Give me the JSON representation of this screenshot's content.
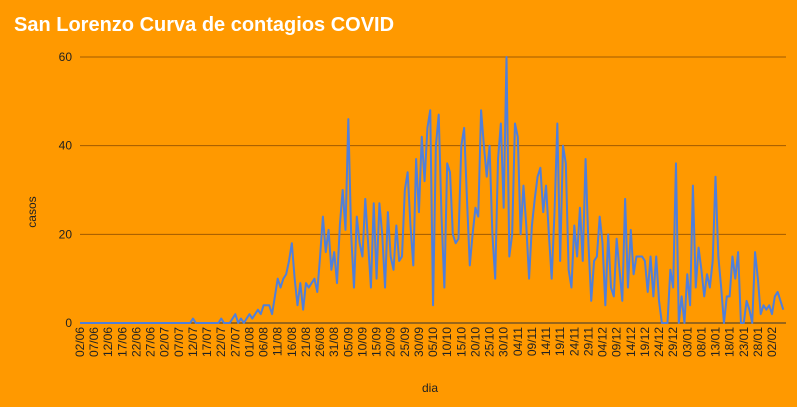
{
  "chart_data": {
    "type": "line",
    "title": "San Lorenzo Curva de contagios COVID",
    "x_label": "dia",
    "y_label": "casos",
    "color": "#4f7fdb",
    "grid": true,
    "ylim": [
      0,
      60
    ],
    "yticks": [
      0,
      20,
      40,
      60
    ],
    "categories": [
      "02/06",
      null,
      null,
      null,
      null,
      "07/06",
      null,
      null,
      null,
      null,
      "12/06",
      null,
      null,
      null,
      null,
      "17/06",
      null,
      null,
      null,
      null,
      "22/06",
      null,
      null,
      null,
      null,
      "27/06",
      null,
      null,
      null,
      null,
      "02/07",
      null,
      null,
      null,
      null,
      "07/07",
      null,
      null,
      null,
      null,
      "12/07",
      null,
      null,
      null,
      null,
      "17/07",
      null,
      null,
      null,
      null,
      "22/07",
      null,
      null,
      null,
      null,
      "27/07",
      null,
      null,
      null,
      null,
      "01/08",
      null,
      null,
      null,
      null,
      "06/08",
      null,
      null,
      null,
      null,
      "11/08",
      null,
      null,
      null,
      null,
      "16/08",
      null,
      null,
      null,
      null,
      "21/08",
      null,
      null,
      null,
      null,
      "26/08",
      null,
      null,
      null,
      null,
      "31/08",
      null,
      null,
      null,
      null,
      "05/09",
      null,
      null,
      null,
      null,
      "10/09",
      null,
      null,
      null,
      null,
      "15/09",
      null,
      null,
      null,
      null,
      "20/09",
      null,
      null,
      null,
      null,
      "25/09",
      null,
      null,
      null,
      null,
      "30/09",
      null,
      null,
      null,
      null,
      "05/10",
      null,
      null,
      null,
      null,
      "10/10",
      null,
      null,
      null,
      null,
      "15/10",
      null,
      null,
      null,
      null,
      "20/10",
      null,
      null,
      null,
      null,
      "25/10",
      null,
      null,
      null,
      null,
      "30/10",
      null,
      null,
      null,
      null,
      "04/11",
      null,
      null,
      null,
      null,
      "09/11",
      null,
      null,
      null,
      null,
      "14/11",
      null,
      null,
      null,
      null,
      "19/11",
      null,
      null,
      null,
      null,
      "24/11",
      null,
      null,
      null,
      null,
      "29/11",
      null,
      null,
      null,
      null,
      "04/12",
      null,
      null,
      null,
      null,
      "09/12",
      null,
      null,
      null,
      null,
      "14/12",
      null,
      null,
      null,
      null,
      "19/12",
      null,
      null,
      null,
      null,
      "24/12",
      null,
      null,
      null,
      null,
      "29/12",
      null,
      null,
      null,
      null,
      "03/01",
      null,
      null,
      null,
      null,
      "08/01",
      null,
      null,
      null,
      null,
      "13/01",
      null,
      null,
      null,
      null,
      "18/01",
      null,
      null,
      null,
      null,
      "23/01",
      null,
      null,
      null,
      null,
      "28/01",
      null,
      null,
      null,
      null,
      "02/02",
      null,
      null,
      null,
      null
    ],
    "values": [
      0,
      0,
      0,
      0,
      0,
      0,
      0,
      0,
      0,
      0,
      0,
      0,
      0,
      0,
      0,
      0,
      0,
      0,
      0,
      0,
      0,
      0,
      0,
      0,
      0,
      0,
      0,
      0,
      0,
      0,
      0,
      0,
      0,
      0,
      0,
      0,
      0,
      0,
      0,
      0,
      1,
      0,
      0,
      0,
      0,
      0,
      0,
      0,
      0,
      0,
      1,
      0,
      0,
      0,
      1,
      2,
      0,
      1,
      0,
      1,
      2,
      1,
      2,
      3,
      2,
      4,
      4,
      4,
      2,
      6,
      10,
      8,
      10,
      11,
      14,
      18,
      10,
      4,
      9,
      3,
      9,
      8,
      9,
      10,
      7,
      15,
      24,
      16,
      21,
      12,
      16,
      9,
      22,
      30,
      21,
      46,
      20,
      8,
      24,
      18,
      15,
      28,
      18,
      8,
      27,
      10,
      27,
      20,
      8,
      25,
      15,
      12,
      22,
      14,
      15,
      30,
      34,
      22,
      13,
      37,
      25,
      42,
      32,
      44,
      48,
      4,
      40,
      47,
      24,
      8,
      36,
      34,
      20,
      18,
      19,
      40,
      44,
      28,
      13,
      20,
      26,
      24,
      48,
      40,
      33,
      40,
      20,
      10,
      37,
      45,
      26,
      60,
      15,
      20,
      45,
      42,
      20,
      31,
      22,
      10,
      22,
      28,
      33,
      35,
      25,
      31,
      20,
      10,
      25,
      45,
      14,
      40,
      36,
      12,
      8,
      22,
      15,
      26,
      14,
      37,
      18,
      5,
      14,
      15,
      24,
      18,
      4,
      20,
      8,
      6,
      19,
      12,
      5,
      28,
      8,
      21,
      11,
      15,
      15,
      15,
      14,
      7,
      15,
      6,
      15,
      5,
      0,
      0,
      0,
      12,
      8,
      36,
      0,
      6,
      0,
      11,
      4,
      31,
      8,
      17,
      12,
      6,
      11,
      8,
      14,
      33,
      15,
      8,
      0,
      6,
      6,
      15,
      10,
      16,
      0,
      0,
      5,
      3,
      0,
      16,
      10,
      2,
      4,
      3,
      4,
      2,
      6,
      7,
      5,
      3
    ]
  }
}
